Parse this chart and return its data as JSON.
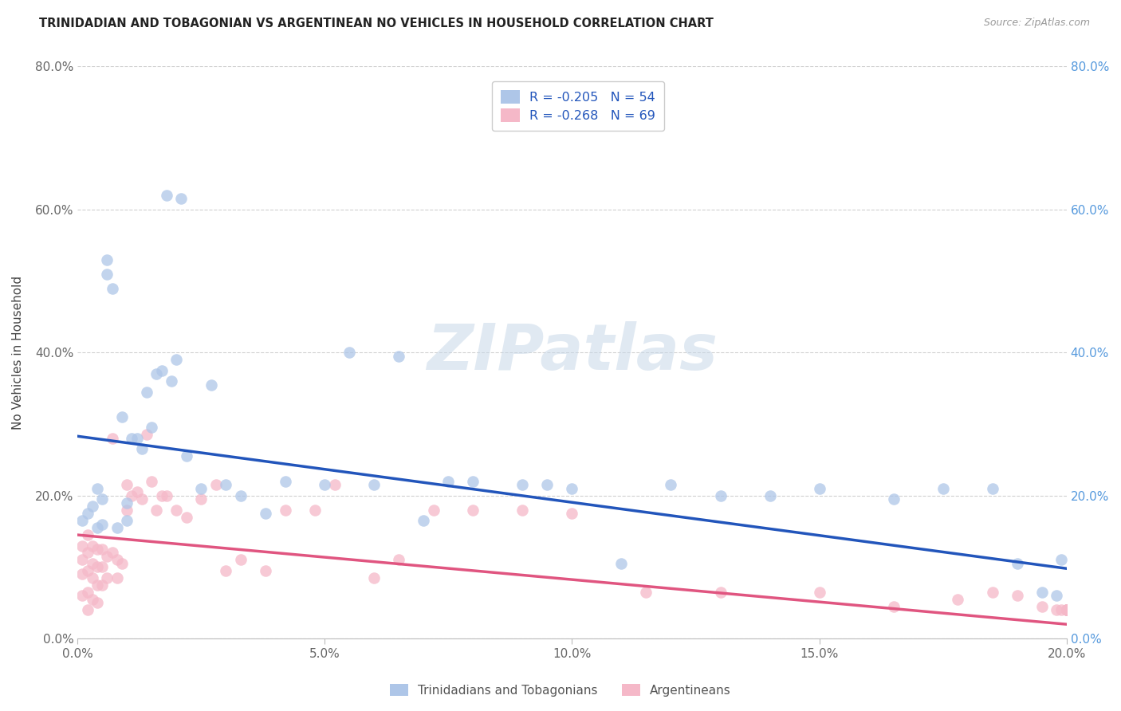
{
  "title": "TRINIDADIAN AND TOBAGONIAN VS ARGENTINEAN NO VEHICLES IN HOUSEHOLD CORRELATION CHART",
  "source": "Source: ZipAtlas.com",
  "ylabel": "No Vehicles in Household",
  "legend_label_1": "Trinidadians and Tobagonians",
  "legend_label_2": "Argentineans",
  "r1": -0.205,
  "n1": 54,
  "r2": -0.268,
  "n2": 69,
  "color_blue": "#aec6e8",
  "color_pink": "#f5b8c8",
  "line_color_blue": "#2255bb",
  "line_color_pink": "#e05580",
  "xlim": [
    0.0,
    0.2
  ],
  "ylim": [
    0.0,
    0.8
  ],
  "xticks": [
    0.0,
    0.05,
    0.1,
    0.15,
    0.2
  ],
  "yticks": [
    0.0,
    0.2,
    0.4,
    0.6,
    0.8
  ],
  "xtick_labels": [
    "0.0%",
    "5.0%",
    "10.0%",
    "15.0%",
    "20.0%"
  ],
  "ytick_labels": [
    "0.0%",
    "20.0%",
    "40.0%",
    "60.0%",
    "80.0%"
  ],
  "watermark": "ZIPatlas",
  "blue_x": [
    0.001,
    0.002,
    0.003,
    0.004,
    0.004,
    0.005,
    0.005,
    0.006,
    0.006,
    0.007,
    0.008,
    0.009,
    0.01,
    0.01,
    0.011,
    0.012,
    0.013,
    0.014,
    0.015,
    0.016,
    0.017,
    0.018,
    0.019,
    0.02,
    0.021,
    0.022,
    0.025,
    0.027,
    0.03,
    0.033,
    0.038,
    0.042,
    0.05,
    0.055,
    0.06,
    0.065,
    0.07,
    0.075,
    0.08,
    0.09,
    0.095,
    0.1,
    0.11,
    0.12,
    0.13,
    0.14,
    0.15,
    0.165,
    0.175,
    0.185,
    0.19,
    0.195,
    0.198,
    0.199
  ],
  "blue_y": [
    0.165,
    0.175,
    0.185,
    0.155,
    0.21,
    0.195,
    0.16,
    0.53,
    0.51,
    0.49,
    0.155,
    0.31,
    0.165,
    0.19,
    0.28,
    0.28,
    0.265,
    0.345,
    0.295,
    0.37,
    0.375,
    0.62,
    0.36,
    0.39,
    0.615,
    0.255,
    0.21,
    0.355,
    0.215,
    0.2,
    0.175,
    0.22,
    0.215,
    0.4,
    0.215,
    0.395,
    0.165,
    0.22,
    0.22,
    0.215,
    0.215,
    0.21,
    0.105,
    0.215,
    0.2,
    0.2,
    0.21,
    0.195,
    0.21,
    0.21,
    0.105,
    0.065,
    0.06,
    0.11
  ],
  "pink_x": [
    0.001,
    0.001,
    0.001,
    0.001,
    0.002,
    0.002,
    0.002,
    0.002,
    0.002,
    0.003,
    0.003,
    0.003,
    0.003,
    0.004,
    0.004,
    0.004,
    0.004,
    0.005,
    0.005,
    0.005,
    0.006,
    0.006,
    0.007,
    0.007,
    0.008,
    0.008,
    0.009,
    0.01,
    0.01,
    0.011,
    0.012,
    0.013,
    0.014,
    0.015,
    0.016,
    0.017,
    0.018,
    0.02,
    0.022,
    0.025,
    0.028,
    0.03,
    0.033,
    0.038,
    0.042,
    0.048,
    0.052,
    0.06,
    0.065,
    0.072,
    0.08,
    0.09,
    0.1,
    0.115,
    0.13,
    0.15,
    0.165,
    0.178,
    0.185,
    0.19,
    0.195,
    0.198,
    0.199,
    0.2,
    0.2,
    0.2,
    0.2,
    0.2,
    0.2
  ],
  "pink_y": [
    0.13,
    0.11,
    0.09,
    0.06,
    0.145,
    0.12,
    0.095,
    0.065,
    0.04,
    0.13,
    0.105,
    0.085,
    0.055,
    0.125,
    0.1,
    0.075,
    0.05,
    0.125,
    0.1,
    0.075,
    0.115,
    0.085,
    0.12,
    0.28,
    0.11,
    0.085,
    0.105,
    0.215,
    0.18,
    0.2,
    0.205,
    0.195,
    0.285,
    0.22,
    0.18,
    0.2,
    0.2,
    0.18,
    0.17,
    0.195,
    0.215,
    0.095,
    0.11,
    0.095,
    0.18,
    0.18,
    0.215,
    0.085,
    0.11,
    0.18,
    0.18,
    0.18,
    0.175,
    0.065,
    0.065,
    0.065,
    0.045,
    0.055,
    0.065,
    0.06,
    0.045,
    0.04,
    0.04,
    0.04,
    0.04,
    0.04,
    0.04,
    0.04,
    0.04
  ],
  "blue_trend_x0": 0.0,
  "blue_trend_y0": 0.283,
  "blue_trend_x1": 0.2,
  "blue_trend_y1": 0.098,
  "pink_trend_x0": 0.0,
  "pink_trend_y0": 0.145,
  "pink_trend_x1": 0.2,
  "pink_trend_y1": 0.02
}
